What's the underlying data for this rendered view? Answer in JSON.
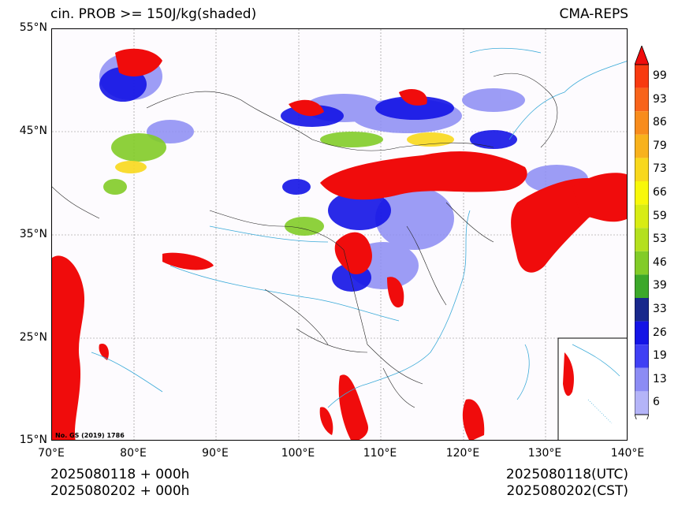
{
  "title_left": "cin. PROB >= 150J/kg(shaded)",
  "title_right": "CMA-REPS",
  "lat_labels": [
    "55°N",
    "45°N",
    "35°N",
    "25°N",
    "15°N"
  ],
  "lon_labels": [
    "70°E",
    "80°E",
    "90°E",
    "100°E",
    "110°E",
    "120°E",
    "130°E",
    "140°E"
  ],
  "bottom_left": [
    "2025080118  +  000h",
    "2025080202  +  000h"
  ],
  "bottom_right": [
    "2025080118(UTC)",
    "2025080202(CST)"
  ],
  "map_note": "No. GS (2019) 1786",
  "colorbar": {
    "levels": [
      "99",
      "93",
      "86",
      "79",
      "73",
      "66",
      "59",
      "53",
      "46",
      "39",
      "33",
      "26",
      "19",
      "13",
      "6"
    ],
    "colors": [
      "#f00c0c",
      "#f83a10",
      "#f8641a",
      "#f88c1c",
      "#f8b21c",
      "#f8d81c",
      "#f8f80a",
      "#d8ec14",
      "#b4e01e",
      "#82cc28",
      "#3ca82a",
      "#18288c",
      "#1414e6",
      "#4040f4",
      "#8c8cf4",
      "#b4b4f8"
    ]
  }
}
